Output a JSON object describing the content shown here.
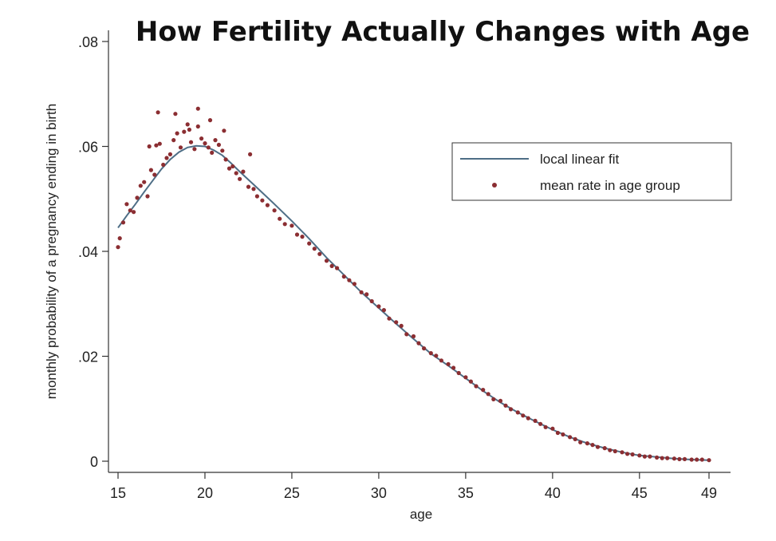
{
  "chart_data": {
    "type": "scatter",
    "title": "How Fertility Actually Changes with Age",
    "xlabel": "age",
    "ylabel": "monthly probability of a pregnancy ending in birth",
    "xlim": [
      15,
      49
    ],
    "ylim": [
      0,
      0.08
    ],
    "x_ticks": [
      15,
      20,
      25,
      30,
      35,
      40,
      45,
      49
    ],
    "x_tick_labels": [
      "15",
      "20",
      "25",
      "30",
      "35",
      "40",
      "45",
      "49"
    ],
    "y_ticks": [
      0,
      0.02,
      0.04,
      0.06,
      0.08
    ],
    "y_tick_labels": [
      "0",
      ".02",
      ".04",
      ".06",
      ".08"
    ],
    "legend": {
      "position": "top-right",
      "entries": [
        {
          "label": "local linear fit",
          "kind": "line"
        },
        {
          "label": "mean rate in age group",
          "kind": "marker"
        }
      ]
    },
    "colors": {
      "line": "#4e6e86",
      "marker": "#8b2e32",
      "axis": "#333333"
    },
    "series": [
      {
        "name": "local linear fit",
        "kind": "line",
        "x": [
          15,
          15.5,
          16,
          16.5,
          17,
          17.5,
          18,
          18.5,
          19,
          19.5,
          20,
          20.5,
          21,
          21.5,
          22,
          23,
          24,
          25,
          26,
          27,
          28,
          29,
          30,
          31,
          32,
          33,
          34,
          35,
          36,
          37,
          38,
          39,
          40,
          41,
          42,
          43,
          44,
          45,
          46,
          47,
          48,
          49
        ],
        "y": [
          0.0445,
          0.0468,
          0.049,
          0.0513,
          0.0535,
          0.0557,
          0.0575,
          0.0589,
          0.0598,
          0.0601,
          0.06,
          0.0593,
          0.0583,
          0.0568,
          0.0552,
          0.0521,
          0.049,
          0.0458,
          0.0424,
          0.0388,
          0.0355,
          0.0322,
          0.0292,
          0.0262,
          0.0233,
          0.0205,
          0.0182,
          0.0158,
          0.0134,
          0.0112,
          0.0093,
          0.0076,
          0.006,
          0.0046,
          0.0034,
          0.0025,
          0.0017,
          0.0011,
          0.0008,
          0.0005,
          0.0003,
          0.0002
        ]
      },
      {
        "name": "mean rate in age group",
        "kind": "scatter",
        "x": [
          15,
          15.1,
          15.3,
          15.5,
          15.7,
          15.9,
          16.1,
          16.3,
          16.5,
          16.7,
          16.9,
          17.1,
          17.2,
          17.4,
          17.6,
          17.8,
          18,
          18.2,
          18.4,
          18.6,
          18.8,
          19,
          19.2,
          19.4,
          19.6,
          19.8,
          20,
          20.2,
          20.4,
          20.6,
          20.8,
          21,
          21.2,
          21.4,
          21.6,
          21.8,
          22,
          22.2,
          22.5,
          22.8,
          23,
          23.3,
          23.6,
          24,
          24.3,
          24.6,
          25,
          25.3,
          25.6,
          26,
          26.3,
          26.6,
          27,
          27.3,
          27.6,
          28,
          28.3,
          28.6,
          29,
          29.3,
          29.6,
          30,
          30.3,
          30.6,
          31,
          31.3,
          31.6,
          32,
          32.3,
          32.6,
          33,
          33.3,
          33.6,
          34,
          34.3,
          34.6,
          35,
          35.3,
          35.6,
          36,
          36.3,
          36.6,
          37,
          37.3,
          37.6,
          38,
          38.3,
          38.6,
          39,
          39.3,
          39.6,
          40,
          40.3,
          40.6,
          41,
          41.3,
          41.6,
          42,
          42.3,
          42.6,
          43,
          43.3,
          43.6,
          44,
          44.3,
          44.6,
          45,
          45.3,
          45.6,
          46,
          46.3,
          46.6,
          47,
          47.3,
          47.6,
          48,
          48.3,
          48.6,
          49,
          16.8,
          17.3,
          18.3,
          19.1,
          19.6,
          20.3,
          21.1,
          22.6
        ],
        "y": [
          0.0408,
          0.0425,
          0.0455,
          0.049,
          0.0478,
          0.0475,
          0.0502,
          0.0525,
          0.0532,
          0.0505,
          0.0555,
          0.0546,
          0.0602,
          0.0605,
          0.0565,
          0.0578,
          0.0585,
          0.0612,
          0.0625,
          0.0598,
          0.0628,
          0.0642,
          0.0608,
          0.0595,
          0.0638,
          0.0615,
          0.0606,
          0.0598,
          0.0588,
          0.0612,
          0.0603,
          0.0592,
          0.0575,
          0.0558,
          0.0562,
          0.0549,
          0.0538,
          0.0552,
          0.0523,
          0.0519,
          0.0505,
          0.0497,
          0.0488,
          0.0478,
          0.0462,
          0.0452,
          0.0449,
          0.0432,
          0.0428,
          0.0415,
          0.0405,
          0.0395,
          0.0382,
          0.0372,
          0.0368,
          0.0352,
          0.0345,
          0.0338,
          0.0322,
          0.0318,
          0.0305,
          0.0295,
          0.0288,
          0.0272,
          0.0265,
          0.0258,
          0.0242,
          0.0238,
          0.0225,
          0.0215,
          0.0206,
          0.0201,
          0.0192,
          0.0185,
          0.0178,
          0.0168,
          0.016,
          0.0152,
          0.0143,
          0.0136,
          0.0128,
          0.0118,
          0.0115,
          0.0106,
          0.0099,
          0.0093,
          0.0087,
          0.0082,
          0.0077,
          0.0071,
          0.0065,
          0.0062,
          0.0054,
          0.0051,
          0.0046,
          0.0042,
          0.0036,
          0.0034,
          0.0031,
          0.0027,
          0.0025,
          0.0021,
          0.0019,
          0.0017,
          0.0014,
          0.0013,
          0.0011,
          0.0009,
          0.0009,
          0.0007,
          0.0006,
          0.0006,
          0.0005,
          0.0004,
          0.0004,
          0.0003,
          0.0003,
          0.0003,
          0.0002,
          0.06,
          0.0665,
          0.0662,
          0.0632,
          0.0672,
          0.065,
          0.063,
          0.0585
        ]
      }
    ]
  }
}
